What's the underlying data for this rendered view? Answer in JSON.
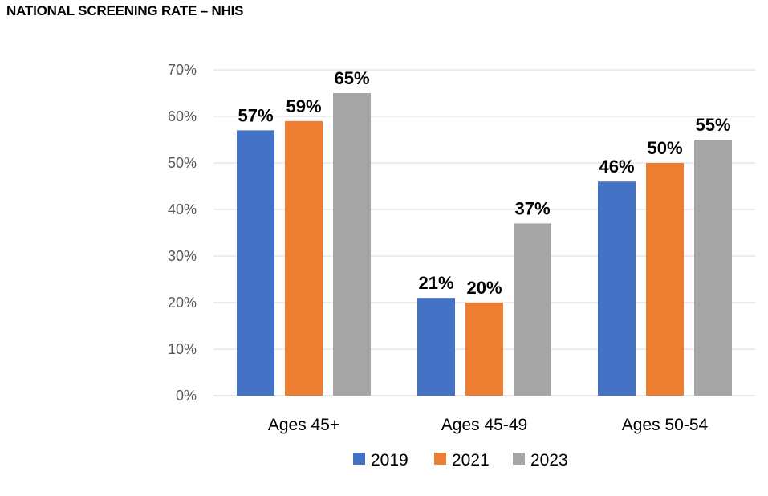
{
  "chart_data": {
    "type": "bar",
    "title": "NATIONAL SCREENING RATE – NHIS",
    "xlabel": "",
    "ylabel": "",
    "categories": [
      "Ages 45+",
      "Ages 45-49",
      "Ages 50-54"
    ],
    "series": [
      {
        "name": "2019",
        "color": "#4472C4",
        "values": [
          57,
          21,
          46
        ]
      },
      {
        "name": "2021",
        "color": "#ED7D31",
        "values": [
          59,
          20,
          50
        ]
      },
      {
        "name": "2023",
        "color": "#A5A5A5",
        "values": [
          65,
          37,
          55
        ]
      }
    ],
    "ylim": [
      0,
      70
    ],
    "yticks": [
      "0%",
      "10%",
      "20%",
      "30%",
      "40%",
      "50%",
      "60%",
      "70%"
    ],
    "data_labels": [
      [
        "57%",
        "21%",
        "46%"
      ],
      [
        "59%",
        "20%",
        "50%"
      ],
      [
        "65%",
        "37%",
        "55%"
      ]
    ],
    "grid": true,
    "legend": "bottom"
  }
}
